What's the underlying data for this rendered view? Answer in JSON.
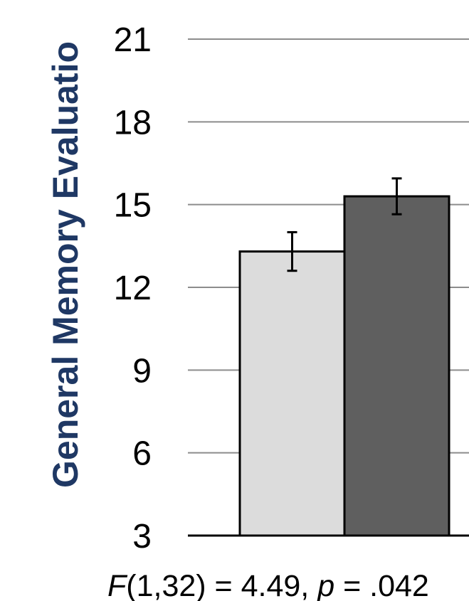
{
  "chart_data": {
    "type": "bar",
    "ylabel": "General Memory Evaluatio",
    "ylim": [
      3,
      21
    ],
    "y_ticks": [
      "3",
      "6",
      "9",
      "12",
      "15",
      "18",
      "21"
    ],
    "grid": true,
    "legend": "none",
    "series": [
      {
        "value": 13.3,
        "error": 0.7,
        "color": "#dcdcdc"
      },
      {
        "value": 15.3,
        "error": 0.65,
        "color": "#5f5f5f"
      }
    ],
    "annotation": {
      "f_symbol": "F",
      "f_args": "(1,32) = 4.49, ",
      "p_symbol": "p",
      "p_rest": " = .042"
    },
    "colors": {
      "title": "#1f3864",
      "grid": "#8c8c8c",
      "axis": "#000000"
    }
  }
}
